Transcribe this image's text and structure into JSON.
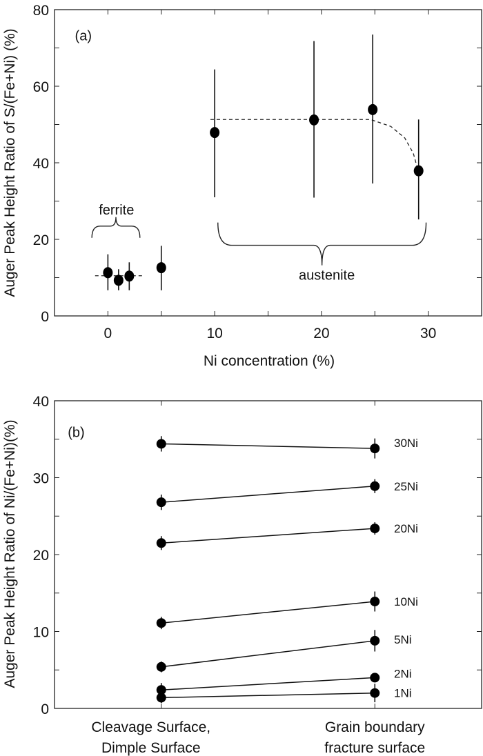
{
  "chart_data": [
    {
      "panel": "(a)",
      "type": "scatter",
      "xlabel": "Ni concentration (%)",
      "ylabel": "Auger Peak Height Ratio of S/(Fe+Ni) (%)",
      "xlim": [
        -5,
        35
      ],
      "ylim": [
        0,
        80
      ],
      "xticks": [
        0,
        10,
        20,
        30
      ],
      "yticks": [
        0,
        20,
        40,
        60,
        80
      ],
      "xminor_step": 5,
      "yminor_step": 10,
      "grid": false,
      "points": [
        {
          "x": 0,
          "y": 11.3,
          "err_low": 6.7,
          "err_high": 16.1
        },
        {
          "x": 1,
          "y": 9.3,
          "err_low": 6.7,
          "err_high": 12.2
        },
        {
          "x": 2,
          "y": 10.4,
          "err_low": 6.7,
          "err_high": 14.0
        },
        {
          "x": 5,
          "y": 12.6,
          "err_low": 6.7,
          "err_high": 18.3
        },
        {
          "x": 10,
          "y": 47.9,
          "err_low": 31.0,
          "err_high": 64.4
        },
        {
          "x": 19.3,
          "y": 51.2,
          "err_low": 30.9,
          "err_high": 71.8
        },
        {
          "x": 24.8,
          "y": 53.9,
          "err_low": 34.6,
          "err_high": 73.5
        },
        {
          "x": 29.1,
          "y": 37.9,
          "err_low": 25.2,
          "err_high": 51.3
        }
      ],
      "trend_lines": [
        {
          "style": "dashed",
          "x": [
            -1.2,
            3.4
          ],
          "y": [
            10.5,
            10.5
          ]
        },
        {
          "style": "dashed",
          "x": [
            9.6,
            24.6,
            26.5,
            27.8,
            28.6,
            29.0
          ],
          "y": [
            51.3,
            51.3,
            49.5,
            46.5,
            42.5,
            38.5
          ]
        }
      ],
      "annotations": [
        {
          "text": "(a)",
          "x": -2.3,
          "y": 72
        },
        {
          "text": "ferrite",
          "x": 0.8,
          "y": 26.5,
          "brace_x": [
            -1.5,
            3.0
          ],
          "brace_y": 20.4,
          "brace_dir": "up"
        },
        {
          "text": "austenite",
          "x": 20.5,
          "y": 9.5,
          "brace_x": [
            10.3,
            29.8
          ],
          "brace_y": 24.4,
          "brace_dir": "down"
        }
      ]
    },
    {
      "panel": "(b)",
      "type": "line",
      "ylabel": "Auger Peak Height Ratio of Ni/(Fe+Ni)(%)",
      "categories": [
        [
          "Cleavage Surface,",
          "Dimple Surface"
        ],
        [
          "Grain boundary",
          "fracture surface"
        ]
      ],
      "ylim": [
        0,
        40
      ],
      "yticks": [
        0,
        10,
        20,
        30,
        40
      ],
      "yminor_step": 5,
      "grid": false,
      "series": [
        {
          "name": "30Ni",
          "values": [
            34.4,
            33.8
          ],
          "errors": [
            1.0,
            1.3
          ]
        },
        {
          "name": "25Ni",
          "values": [
            26.8,
            28.9
          ],
          "errors": [
            1.0,
            0.9
          ]
        },
        {
          "name": "20Ni",
          "values": [
            21.5,
            23.4
          ],
          "errors": [
            0.9,
            0.8
          ]
        },
        {
          "name": "10Ni",
          "values": [
            11.1,
            13.9
          ],
          "errors": [
            0.8,
            1.3
          ]
        },
        {
          "name": "5Ni",
          "values": [
            5.4,
            8.8
          ],
          "errors": [
            0.7,
            1.4
          ]
        },
        {
          "name": "2Ni",
          "values": [
            2.4,
            4.0
          ],
          "errors": [
            0.9,
            0.6
          ]
        },
        {
          "name": "1Ni",
          "values": [
            1.4,
            2.0
          ],
          "errors": [
            0.7,
            1.2
          ]
        }
      ],
      "annotations": [
        {
          "text": "(b)",
          "x": 0.3,
          "y": 36
        }
      ]
    }
  ]
}
